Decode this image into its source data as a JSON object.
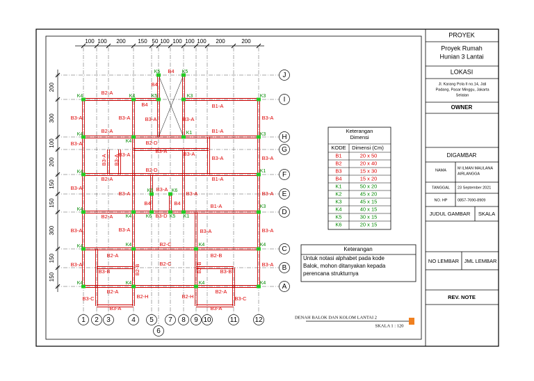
{
  "title_block": {
    "proyek_header": "PROYEK",
    "proyek": [
      "Proyek Rumah",
      "Hunian 3 Lantai"
    ],
    "lokasi_header": "LOKASI",
    "lokasi": [
      "Jl. Karang Pola II no.14, Jati",
      "Padang, Pasar Minggu, Jakarta",
      "Selatan"
    ],
    "owner_header": "OWNER",
    "digambar_header": "DIGAMBAR",
    "nama_label": "NAMA",
    "nama": [
      "M ILMAN MAULANA",
      "AIRLANGGA"
    ],
    "tanggal_label": "TANGGAL",
    "tanggal": "23 September 2021",
    "hp_label": "NO. HP",
    "hp": "0857-7690-8909",
    "judul_gambar": "JUDUL GAMBAR",
    "skala": "SKALA",
    "no_lembar": "NO LEMBAR",
    "jml_lembar": "JML LEMBAR",
    "rev_note": "REV. NOTE"
  },
  "legend": {
    "title": [
      "Keterangan",
      "Dimensi"
    ],
    "headers": [
      "KODE",
      "Dimensi (Cm)"
    ],
    "rows": [
      [
        "B1",
        "20 x 50"
      ],
      [
        "B2",
        "20 x 40"
      ],
      [
        "B3",
        "15 x 30"
      ],
      [
        "B4",
        "15 x 20"
      ],
      [
        "K1",
        "50 x 20"
      ],
      [
        "K2",
        "45 x 20"
      ],
      [
        "K3",
        "45 x 15"
      ],
      [
        "K4",
        "40 x 15"
      ],
      [
        "K5",
        "30 x 15"
      ],
      [
        "K6",
        "20 x 15"
      ]
    ]
  },
  "note": {
    "title": "Keterangan",
    "lines": [
      "Untuk notasi alphabet pada kode",
      "Balok, mohon ditanyakan kepada",
      "perencana strukturnya"
    ]
  },
  "drawing": {
    "title": "DENAH BALOK DAN KOLOM LANTAI 2",
    "scale": "SKALA 1 : 120",
    "grid_x": [
      "1",
      "2",
      "3",
      "4",
      "5",
      "6",
      "7",
      "8",
      "9",
      "10",
      "11",
      "12"
    ],
    "grid_y": [
      "J",
      "I",
      "H",
      "G",
      "F",
      "E",
      "D",
      "C",
      "B",
      "A"
    ],
    "dim_top": [
      "100",
      "100",
      "200",
      "150",
      "50",
      "100",
      "100",
      "100",
      "100",
      "200",
      "200"
    ],
    "dim_left": [
      "200",
      "300",
      "100",
      "200",
      "150",
      "150",
      "300",
      "150",
      "150"
    ],
    "columns": [
      "K4",
      "K4",
      "K3",
      "K5",
      "K5",
      "K5",
      "K3",
      "K1",
      "K4",
      "K3",
      "K4",
      "K4",
      "K1",
      "K6",
      "K6",
      "K4",
      "K4",
      "K6",
      "K5",
      "K1",
      "K3",
      "K4",
      "K4",
      "K4",
      "K4",
      "K4",
      "K4",
      "K4",
      "K4"
    ],
    "beams": [
      "B2-A",
      "B4",
      "B4",
      "B4",
      "B1-A",
      "B3-A",
      "B3-A",
      "B3-A",
      "B3-A",
      "B3-A",
      "B2-A",
      "B1-A",
      "B2-D",
      "B3-A",
      "B3-A",
      "B3-A",
      "B3-A",
      "B3-A",
      "B3-A",
      "B2-D",
      "B2-A",
      "B1-A",
      "B3-A",
      "B3-A",
      "B3-A",
      "B3-A",
      "B3-A",
      "B4",
      "B4",
      "B1-A",
      "B2-A",
      "B3-D",
      "B3-A",
      "B3-A",
      "B3-A",
      "B3-A",
      "B2-C",
      "B2-A",
      "B2-B",
      "B3-A",
      "B3-B",
      "B2-C",
      "B3-B",
      "B3-A",
      "B2-A",
      "B2-A",
      "B3-C",
      "B2-H",
      "B2-H",
      "B3-C",
      "B3-A",
      "B3-A",
      "B3-A",
      "B3-A",
      "B2-B",
      "B2-B"
    ]
  }
}
